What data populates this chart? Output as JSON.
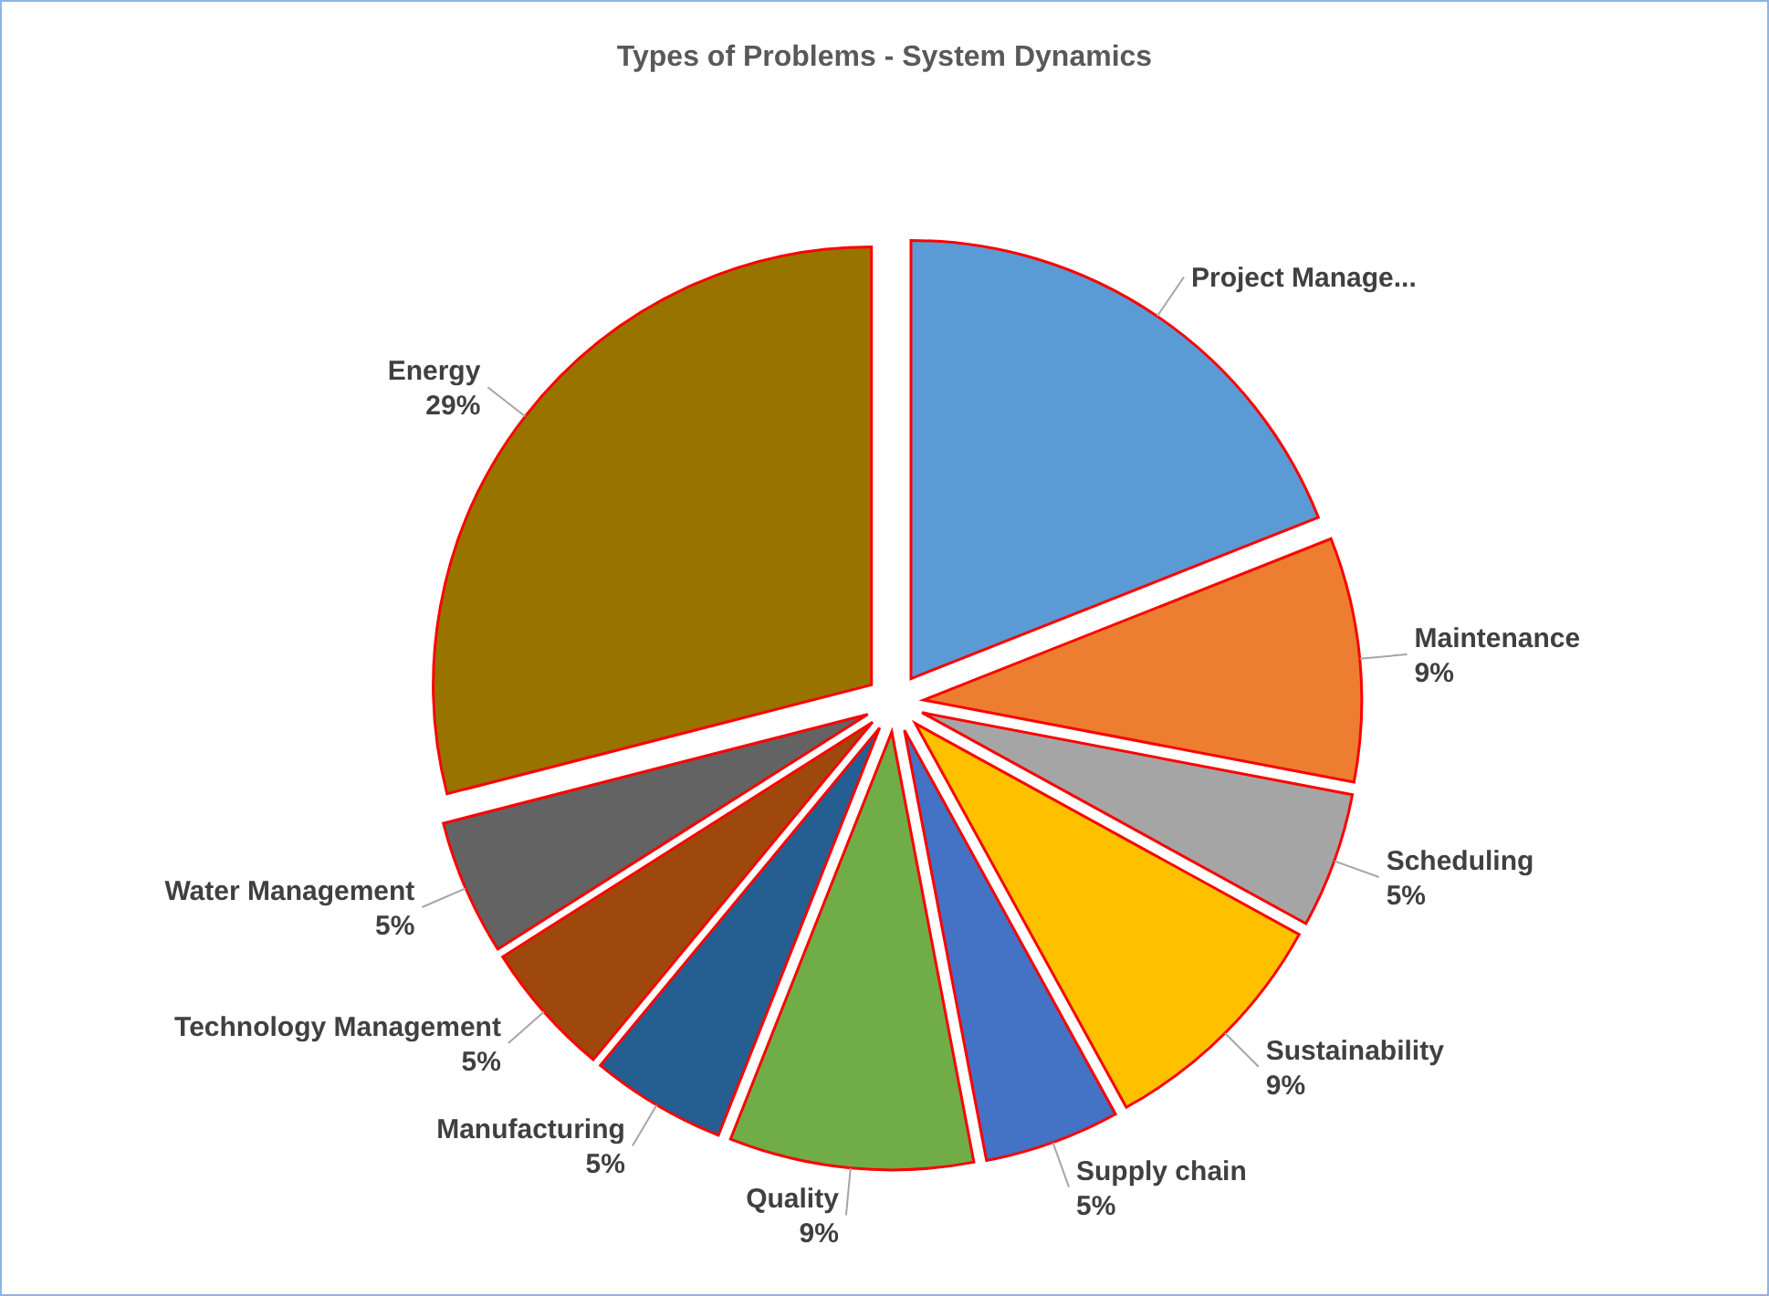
{
  "chart_data": {
    "type": "pie",
    "title": "Types of Problems - System Dynamics",
    "categories": [
      "Project Manage...",
      "Maintenance",
      "Scheduling",
      "Sustainability",
      "Supply chain",
      "Quality",
      "Manufacturing",
      "Technology Management",
      "Water Management",
      "Energy"
    ],
    "values": [
      19,
      9,
      5,
      9,
      5,
      9,
      5,
      5,
      5,
      29
    ],
    "value_labels": [
      null,
      "9%",
      "5%",
      "9%",
      "5%",
      "9%",
      "5%",
      "5%",
      "5%",
      "29%"
    ],
    "colors": [
      "#5b9bd5",
      "#ed7d31",
      "#a5a5a5",
      "#ffc000",
      "#4472c4",
      "#70ad47",
      "#255e91",
      "#9e480e",
      "#636363",
      "#997300"
    ]
  }
}
